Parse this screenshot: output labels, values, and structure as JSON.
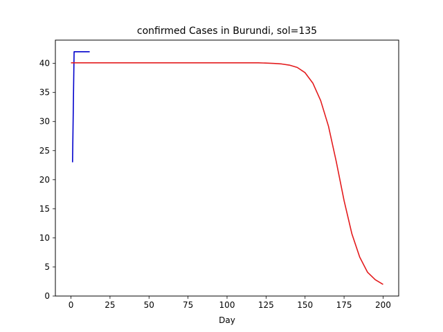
{
  "chart_data": {
    "type": "line",
    "title": "confirmed Cases in Burundi, sol=135",
    "xlabel": "Day",
    "ylabel": "",
    "xlim": [
      -10,
      210
    ],
    "ylim": [
      0,
      44
    ],
    "xticks": [
      0,
      25,
      50,
      75,
      100,
      125,
      150,
      175,
      200
    ],
    "yticks": [
      0,
      5,
      10,
      15,
      20,
      25,
      30,
      35,
      40
    ],
    "grid": false,
    "legend": "none",
    "series": [
      {
        "color": "#0000cc",
        "x": [
          1,
          2,
          3,
          4,
          5,
          6,
          7,
          8,
          9,
          10,
          11,
          12
        ],
        "y": [
          23,
          42,
          42,
          42,
          42,
          42,
          42,
          42,
          42,
          42,
          42,
          42
        ]
      },
      {
        "color": "#e31a1c",
        "x": [
          0,
          20,
          40,
          60,
          80,
          100,
          110,
          120,
          125,
          130,
          135,
          140,
          145,
          150,
          155,
          160,
          165,
          170,
          175,
          180,
          185,
          190,
          195,
          200
        ],
        "y": [
          40.1,
          40.1,
          40.1,
          40.1,
          40.1,
          40.1,
          40.1,
          40.1,
          40.05,
          40.0,
          39.9,
          39.7,
          39.3,
          38.4,
          36.6,
          33.6,
          29.2,
          23.1,
          16.4,
          10.7,
          6.7,
          4.1,
          2.8,
          2.0
        ]
      }
    ]
  }
}
